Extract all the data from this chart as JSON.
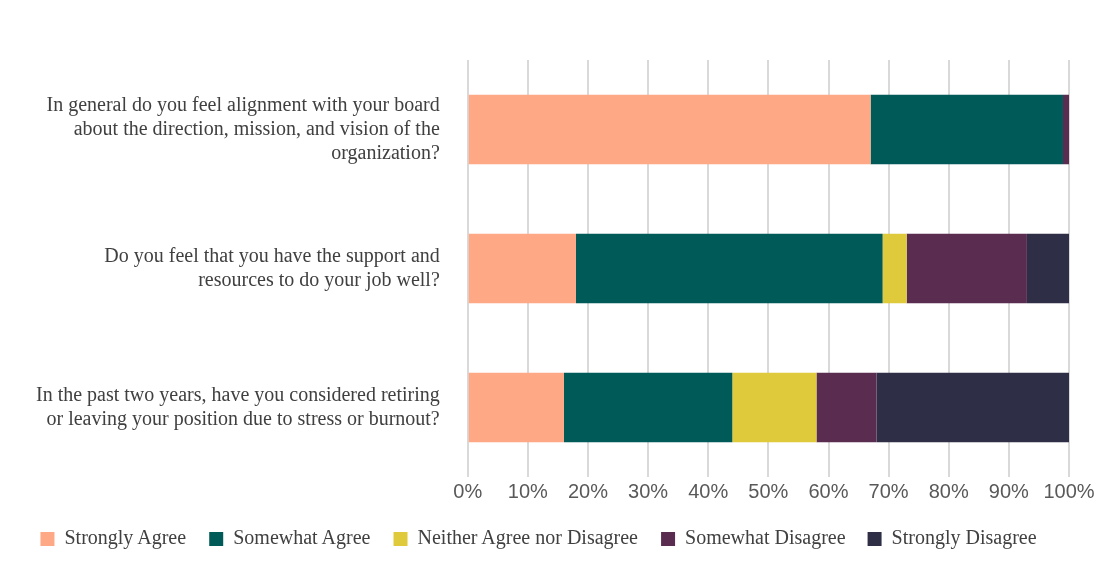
{
  "chart_data": {
    "type": "bar",
    "orientation": "horizontal",
    "stacked": true,
    "categories": [
      "In general do you feel alignment with your board\nabout the direction, mission, and vision of the\norganization?",
      "Do you feel that you have the support and\nresources to do your job well?",
      "In the past two years, have you considered retiring\nor leaving your position due to stress or burnout?"
    ],
    "series": [
      {
        "name": "Strongly Agree",
        "color": "#fea886",
        "values": [
          67,
          18,
          16
        ]
      },
      {
        "name": "Somewhat Agree",
        "color": "#005a58",
        "values": [
          32,
          51,
          28
        ]
      },
      {
        "name": "Neither Agree nor Disagree",
        "color": "#dfca3c",
        "values": [
          0,
          4,
          14
        ]
      },
      {
        "name": "Somewhat Disagree",
        "color": "#5a2d50",
        "values": [
          1,
          20,
          10
        ]
      },
      {
        "name": "Strongly Disagree",
        "color": "#2e2f46",
        "values": [
          0,
          7,
          32
        ]
      }
    ],
    "xlim": [
      0,
      100
    ],
    "xticks": [
      {
        "value": 0,
        "label": "0%"
      },
      {
        "value": 10,
        "label": "10%"
      },
      {
        "value": 20,
        "label": "20%"
      },
      {
        "value": 30,
        "label": "30%"
      },
      {
        "value": 40,
        "label": "40%"
      },
      {
        "value": 50,
        "label": "50%"
      },
      {
        "value": 60,
        "label": "60%"
      },
      {
        "value": 70,
        "label": "70%"
      },
      {
        "value": 80,
        "label": "80%"
      },
      {
        "value": 90,
        "label": "90%"
      },
      {
        "value": 100,
        "label": "100%"
      }
    ],
    "grid": "x",
    "legend": "bottom"
  }
}
